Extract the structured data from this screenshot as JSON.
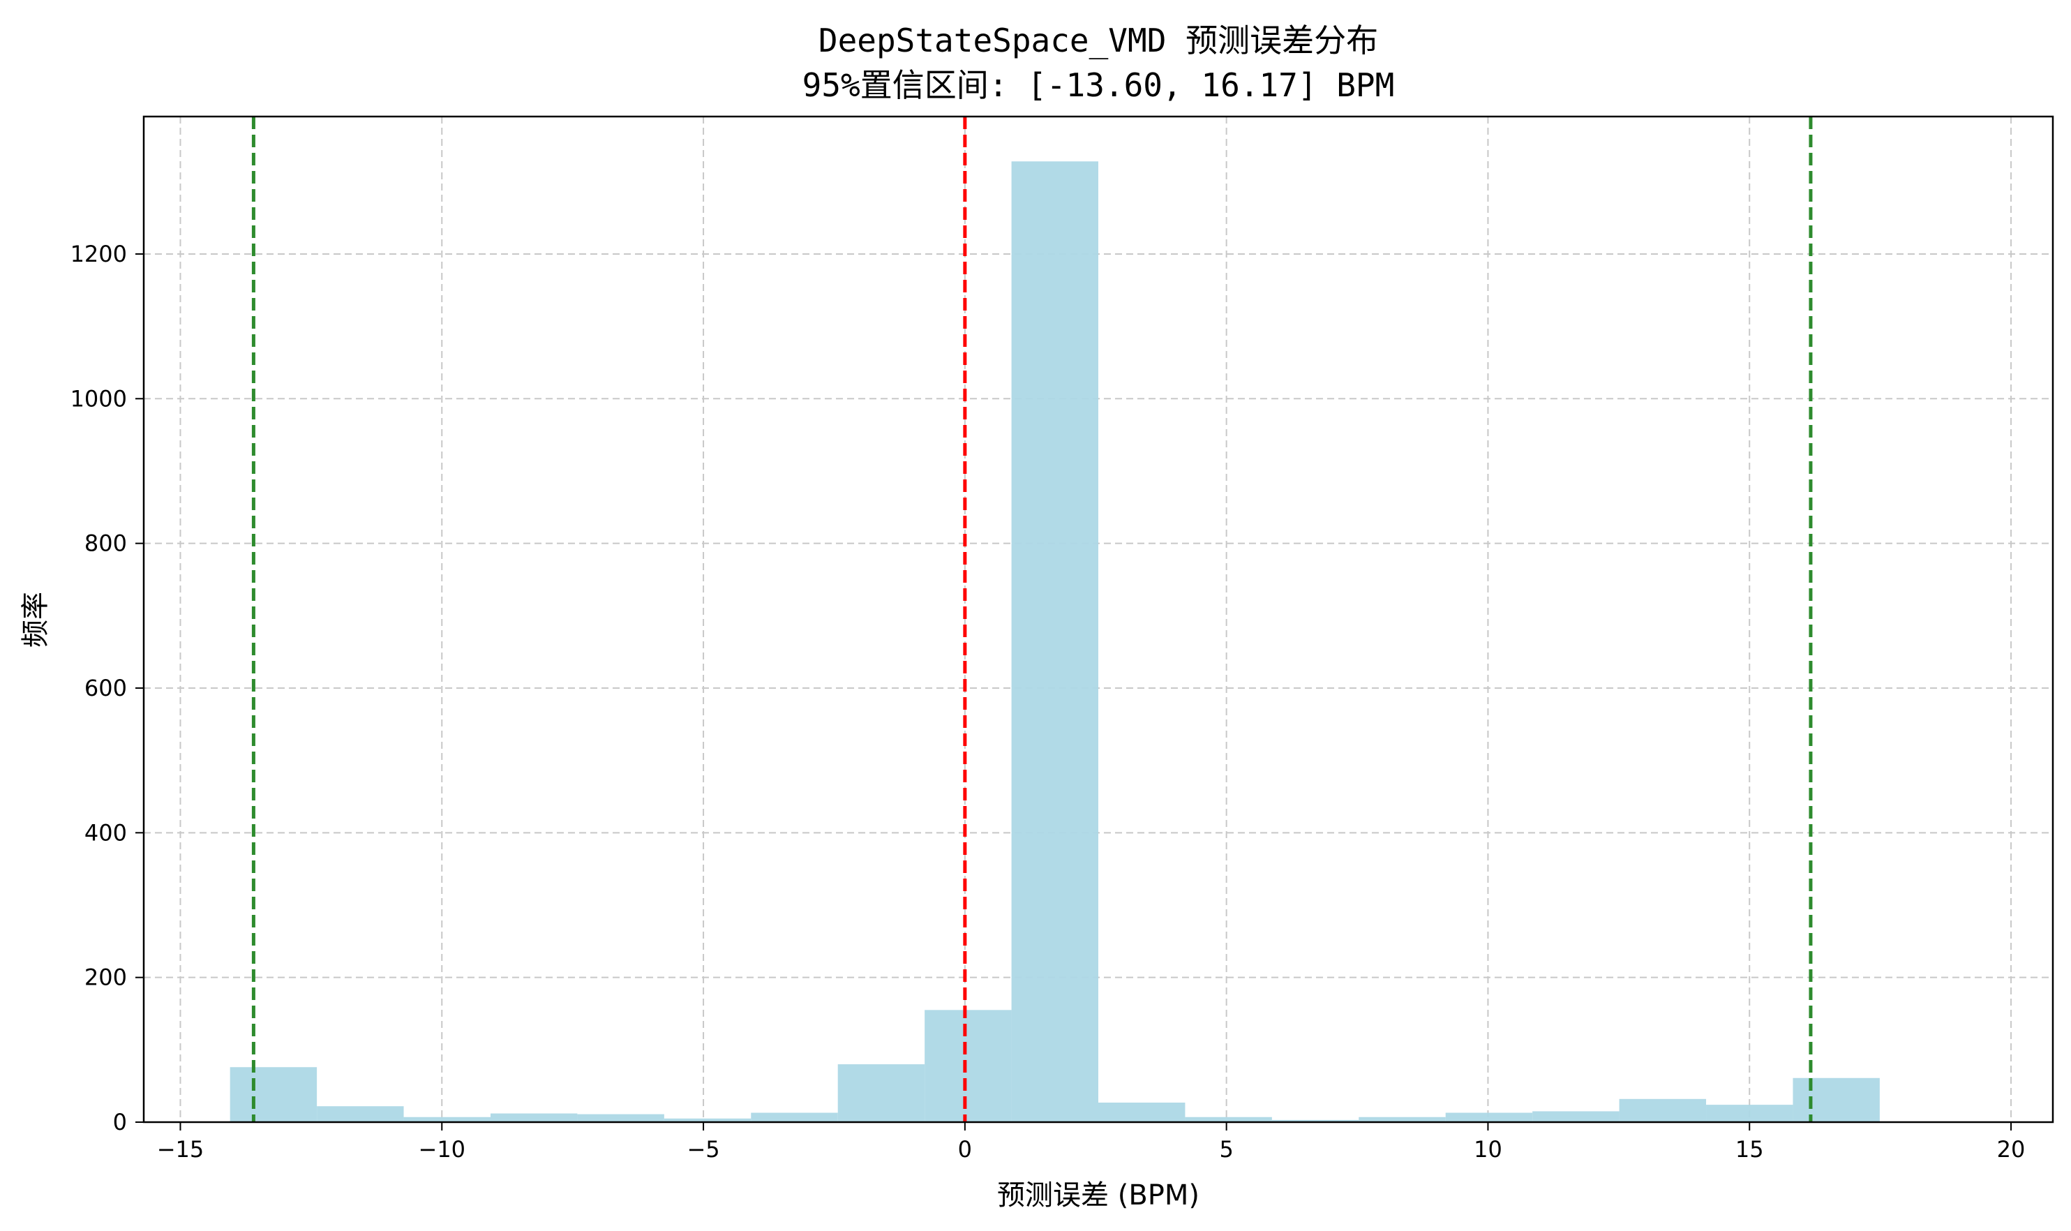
{
  "chart_data": {
    "type": "bar",
    "title": "DeepStateSpace_VMD 预测误差分布",
    "subtitle": "95%置信区间: [-13.60, 16.17] BPM",
    "xlabel": "预测误差 (BPM)",
    "ylabel": "频率",
    "xlim": [
      -15.7,
      20.8
    ],
    "ylim": [
      0,
      1390
    ],
    "xticks": [
      -15,
      -10,
      -5,
      0,
      5,
      10,
      15,
      20
    ],
    "xtick_labels": [
      "−15",
      "−10",
      "−5",
      "0",
      "5",
      "10",
      "15",
      "20"
    ],
    "yticks": [
      0,
      200,
      400,
      600,
      800,
      1000,
      1200
    ],
    "ytick_labels": [
      "0",
      "200",
      "400",
      "600",
      "800",
      "1000",
      "1200"
    ],
    "grid": true,
    "bin_edges": [
      -14.05,
      -12.39,
      -10.73,
      -9.07,
      -7.41,
      -5.75,
      -4.09,
      -2.43,
      -0.77,
      0.89,
      2.55,
      4.21,
      5.87,
      7.53,
      9.19,
      10.85,
      12.51,
      14.17,
      15.83,
      17.49
    ],
    "values": [
      76,
      22,
      7,
      12,
      11,
      5,
      13,
      80,
      155,
      1328,
      27,
      7,
      3,
      7,
      13,
      15,
      32,
      24,
      61
    ],
    "bar_color": "#add8e6",
    "vlines": [
      {
        "x": 0,
        "color": "#ff0000",
        "style": "dashed"
      },
      {
        "x": -13.6,
        "color": "#2e8b2e",
        "style": "dashed"
      },
      {
        "x": 16.17,
        "color": "#2e8b2e",
        "style": "dashed"
      }
    ]
  }
}
